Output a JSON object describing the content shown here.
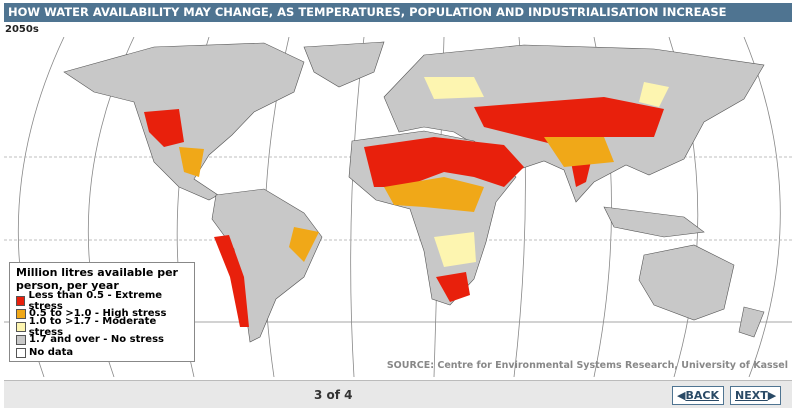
{
  "header": {
    "title": "HOW WATER AVAILABILITY MAY CHANGE, AS TEMPERATURES, POPULATION AND INDUSTRIALISATION INCREASE",
    "subtitle": "2050s"
  },
  "legend": {
    "title": "Million litres available per person, per year",
    "items": [
      {
        "label": "Less than 0.5 - Extreme stress",
        "color": "#e8200c"
      },
      {
        "label": "0.5 to >1.0 - High stress",
        "color": "#f0a818"
      },
      {
        "label": "1.0 to >1.7 - Moderate stress",
        "color": "#fdf5b0"
      },
      {
        "label": "1.7 and over - No stress",
        "color": "#c8c8c8"
      },
      {
        "label": "No data",
        "color": "#ffffff"
      }
    ]
  },
  "source": "SOURCE: Centre for Environmental Systems Research, University of Kassel",
  "pager": {
    "position": "3 of 4",
    "back": "BACK",
    "next": "NEXT"
  }
}
